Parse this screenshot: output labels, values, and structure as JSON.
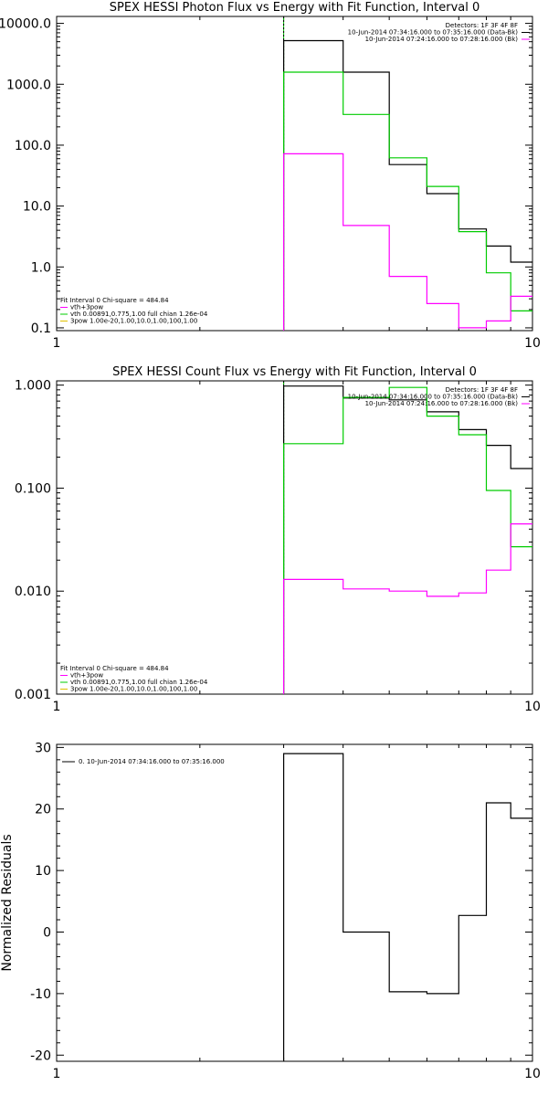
{
  "colors": {
    "background": "#ffffff",
    "axes": "#000000",
    "data": "#000000",
    "fit_total": "#ff00ff",
    "vth": "#00cc00"
  },
  "chart_data": [
    {
      "type": "line",
      "title": "SPEX HESSI Photon Flux vs Energy with Fit Function, Interval 0",
      "xlabel": "",
      "ylabel": "",
      "xscale": "log",
      "yscale": "log",
      "xlim": [
        1,
        10
      ],
      "ylim": [
        0.09,
        13000
      ],
      "xticks": [
        {
          "v": 1,
          "label": "1"
        },
        {
          "v": 10,
          "label": "10"
        }
      ],
      "yticks": [
        {
          "v": 10000,
          "label": "10000.0"
        },
        {
          "v": 1000,
          "label": "1000.0"
        },
        {
          "v": 100,
          "label": "100.0"
        },
        {
          "v": 10,
          "label": "10.0"
        },
        {
          "v": 1,
          "label": "1.0"
        },
        {
          "v": 0.1,
          "label": "0.1"
        }
      ],
      "vline": 3.0,
      "legend_top": {
        "lines": [
          {
            "text": "Detectors: 1F 3F 4F 8F",
            "color": ""
          },
          {
            "text": "10-Jun-2014 07:34:16.000 to 07:35:16.000 (Data-Bk)",
            "color": "#000000"
          },
          {
            "text": "10-Jun-2014 07:24:16.000 to 07:28:16.000 (Bk)",
            "color": "#ff00ff"
          }
        ]
      },
      "legend_bottom": {
        "lines": [
          {
            "text": "Fit Interval 0   Chi-square = 484.84",
            "color": ""
          },
          {
            "text": "vth+3pow",
            "color": "#ff00ff"
          },
          {
            "text": "vth 0.00891,0.775,1.00  full chian 1.26e-04",
            "color": "#00cc00"
          },
          {
            "text": "3pow 1.00e-20,1.00,10.0,1.00,100,1.00",
            "color": "#e0c000"
          }
        ]
      },
      "series": [
        {
          "color": "#000000",
          "edges": [
            3.0,
            4.0,
            5.0,
            6.0,
            7.0,
            8.0,
            9.0,
            10.0
          ],
          "values": [
            5200,
            1580,
            48,
            16,
            4.2,
            2.2,
            1.2
          ]
        },
        {
          "color": "#00cc00",
          "edges": [
            3.0,
            4.0,
            5.0,
            6.0,
            7.0,
            8.0,
            9.0,
            10.0
          ],
          "values": [
            1580,
            320,
            62,
            21,
            3.8,
            0.8,
            0.19
          ]
        },
        {
          "color": "#ff00ff",
          "edges": [
            3.0,
            4.0,
            5.0,
            6.0,
            7.0,
            8.0,
            9.0,
            10.0
          ],
          "values": [
            72,
            4.8,
            0.7,
            0.25,
            0.1,
            0.13,
            0.33
          ]
        }
      ]
    },
    {
      "type": "line",
      "title": "SPEX HESSI Count Flux vs Energy with Fit Function, Interval 0",
      "xlabel": "",
      "ylabel": "",
      "xscale": "log",
      "yscale": "log",
      "xlim": [
        1,
        10
      ],
      "ylim": [
        0.001,
        1.1
      ],
      "xticks": [
        {
          "v": 1,
          "label": "1"
        },
        {
          "v": 10,
          "label": "10"
        }
      ],
      "yticks": [
        {
          "v": 1,
          "label": "1.000"
        },
        {
          "v": 0.1,
          "label": "0.100"
        },
        {
          "v": 0.01,
          "label": "0.010"
        },
        {
          "v": 0.001,
          "label": "0.001"
        }
      ],
      "vline": 3.0,
      "legend_top": {
        "lines": [
          {
            "text": "Detectors: 1F 3F 4F 8F",
            "color": ""
          },
          {
            "text": "10-Jun-2014 07:34:16.000 to 07:35:16.000 (Data-Bk)",
            "color": "#000000"
          },
          {
            "text": "10-Jun-2014 07:24:16.000 to 07:28:16.000 (Bk)",
            "color": "#ff00ff"
          }
        ]
      },
      "legend_bottom": {
        "lines": [
          {
            "text": "Fit Interval 0   Chi-square = 484.84",
            "color": ""
          },
          {
            "text": "vth+3pow",
            "color": "#ff00ff"
          },
          {
            "text": "vth 0.00891,0.775,1.00  full chian 1.26e-04",
            "color": "#00cc00"
          },
          {
            "text": "3pow 1.00e-20,1.00,10.0,1.00,100,1.00",
            "color": "#e0c000"
          }
        ]
      },
      "series": [
        {
          "color": "#000000",
          "edges": [
            3.0,
            4.0,
            5.0,
            6.0,
            7.0,
            8.0,
            9.0,
            10.0
          ],
          "values": [
            0.98,
            0.75,
            0.72,
            0.55,
            0.37,
            0.26,
            0.155
          ]
        },
        {
          "color": "#00cc00",
          "edges": [
            3.0,
            4.0,
            5.0,
            6.0,
            7.0,
            8.0,
            9.0,
            10.0
          ],
          "values": [
            0.27,
            0.76,
            0.95,
            0.5,
            0.33,
            0.095,
            0.027
          ]
        },
        {
          "color": "#ff00ff",
          "edges": [
            3.0,
            4.0,
            5.0,
            6.0,
            7.0,
            8.0,
            9.0,
            10.0
          ],
          "values": [
            0.013,
            0.0105,
            0.01,
            0.0089,
            0.0096,
            0.016,
            0.045
          ]
        }
      ]
    },
    {
      "type": "line",
      "title": "",
      "xlabel": "",
      "ylabel": "Normalized Residuals",
      "xscale": "log",
      "yscale": "linear",
      "xlim": [
        1,
        10
      ],
      "ylim": [
        -21,
        30.5
      ],
      "xticks": [
        {
          "v": 1,
          "label": "1"
        },
        {
          "v": 10,
          "label": "10"
        }
      ],
      "yticks": [
        {
          "v": 30,
          "label": "30"
        },
        {
          "v": 20,
          "label": "20"
        },
        {
          "v": 10,
          "label": "10"
        },
        {
          "v": 0,
          "label": "0"
        },
        {
          "v": -10,
          "label": "-10"
        },
        {
          "v": -20,
          "label": "-20"
        }
      ],
      "legend_top": {
        "lines": [
          {
            "text": "0. 10-Jun-2014 07:34:16.000 to 07:35:16.000",
            "color": "#000000"
          }
        ]
      },
      "series": [
        {
          "color": "#000000",
          "edges": [
            3.0,
            4.0,
            5.0,
            6.0,
            7.0,
            8.0,
            9.0,
            10.0
          ],
          "values": [
            29,
            0,
            -9.7,
            -10,
            2.7,
            21,
            18.5
          ],
          "start_from": -21
        }
      ]
    }
  ]
}
